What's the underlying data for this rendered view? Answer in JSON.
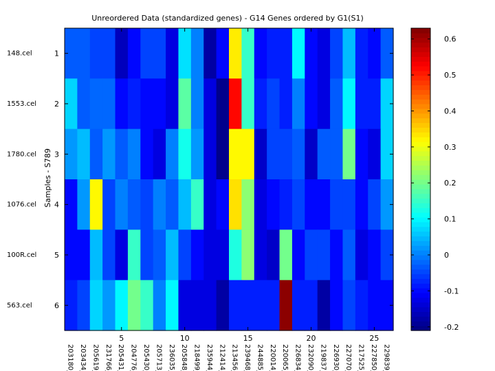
{
  "chart_data": {
    "type": "heatmap",
    "title": "Unreordered Data (standardized genes) - G14 Genes ordered by G1(S1)",
    "ylabel": "Samples - S789",
    "xlabel": "",
    "rows": [
      "148.cel",
      "1553.cel",
      "1780.cel",
      "1076.cel",
      "100R.cel",
      "563.cel"
    ],
    "row_ticks": [
      1,
      2,
      3,
      4,
      5,
      6
    ],
    "columns": [
      "203180_",
      "203434_",
      "205619_",
      "231766_",
      "205431_",
      "204776_",
      "205430_",
      "205713_",
      "236035_",
      "205848_",
      "218499_",
      "235944_",
      "212414_",
      "213456_",
      "239468_",
      "244885_",
      "220014_",
      "220065_",
      "226834_",
      "232090_",
      "219837_",
      "226930_",
      "227070_",
      "217525_",
      "227850_",
      "229839_"
    ],
    "x_ticks": [
      5,
      10,
      15,
      20,
      25
    ],
    "colorbar": {
      "min": -0.21,
      "max": 0.63,
      "ticks": [
        -0.2,
        -0.1,
        0,
        0.1,
        0.2,
        0.3,
        0.4,
        0.5,
        0.6
      ],
      "tick_labels": [
        "-0.2",
        "-0.1",
        "0",
        "0.1",
        "0.2",
        "0.3",
        "0.4",
        "0.5",
        "0.6"
      ],
      "colormap": "jet"
    },
    "values": [
      [
        -0.03,
        -0.03,
        -0.05,
        -0.05,
        -0.16,
        -0.1,
        -0.05,
        -0.05,
        -0.13,
        0.08,
        0.0,
        -0.18,
        -0.1,
        0.33,
        0.15,
        -0.1,
        -0.08,
        -0.08,
        0.1,
        -0.1,
        -0.13,
        -0.05,
        0.05,
        -0.08,
        -0.1,
        -0.03
      ],
      [
        0.07,
        -0.03,
        -0.02,
        -0.02,
        -0.1,
        -0.08,
        -0.1,
        -0.1,
        -0.13,
        0.18,
        0.0,
        -0.13,
        -0.2,
        0.52,
        0.15,
        -0.08,
        -0.05,
        -0.08,
        0.0,
        -0.1,
        -0.13,
        -0.03,
        0.1,
        -0.08,
        -0.08,
        0.07
      ],
      [
        0.02,
        0.05,
        -0.03,
        0.02,
        -0.03,
        0.0,
        -0.1,
        -0.13,
        0.0,
        0.12,
        0.02,
        -0.13,
        -0.2,
        0.32,
        0.32,
        -0.15,
        -0.05,
        -0.05,
        -0.03,
        -0.15,
        -0.03,
        -0.03,
        0.2,
        -0.1,
        -0.13,
        0.07
      ],
      [
        -0.1,
        0.02,
        0.32,
        -0.05,
        0.0,
        -0.03,
        -0.05,
        0.0,
        -0.03,
        0.05,
        0.15,
        -0.13,
        -0.1,
        0.34,
        0.22,
        -0.13,
        -0.1,
        -0.08,
        -0.05,
        -0.1,
        -0.1,
        -0.05,
        -0.05,
        -0.1,
        -0.05,
        0.02
      ],
      [
        -0.1,
        -0.1,
        0.05,
        -0.05,
        -0.13,
        0.15,
        -0.05,
        -0.03,
        0.05,
        -0.05,
        -0.1,
        -0.13,
        -0.13,
        0.13,
        0.22,
        -0.13,
        -0.15,
        0.2,
        -0.1,
        -0.05,
        -0.05,
        -0.1,
        -0.03,
        -0.13,
        -0.1,
        -0.05
      ],
      [
        -0.08,
        -0.05,
        0.07,
        0.02,
        0.1,
        0.2,
        0.15,
        0.0,
        0.1,
        -0.13,
        -0.13,
        -0.13,
        -0.18,
        -0.08,
        -0.08,
        -0.08,
        -0.08,
        0.62,
        -0.08,
        -0.08,
        -0.18,
        -0.1,
        -0.05,
        -0.08,
        -0.1,
        -0.1
      ]
    ]
  }
}
